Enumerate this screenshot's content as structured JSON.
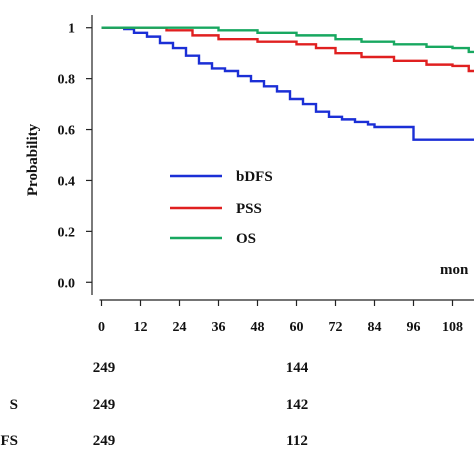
{
  "chart_data": {
    "type": "line",
    "title": "",
    "xlabel": "mon",
    "ylabel": "Probability",
    "xlim": [
      -2,
      118
    ],
    "ylim": [
      -0.05,
      1.05
    ],
    "xticks": [
      "0",
      "12",
      "24",
      "36",
      "48",
      "60",
      "72",
      "84",
      "96",
      "108"
    ],
    "xtick_values": [
      0,
      12,
      24,
      36,
      48,
      60,
      72,
      84,
      96,
      108
    ],
    "yticks": [
      "0.0",
      "0.2",
      "0.4",
      "0.6",
      "0.8",
      "1"
    ],
    "ytick_values": [
      0,
      0.2,
      0.4,
      0.6,
      0.8,
      1
    ],
    "grid": false,
    "legend": "center-left",
    "series": [
      {
        "name": "bDFS",
        "color": "#1b2fd6",
        "x": [
          0,
          7,
          10,
          14,
          18,
          22,
          26,
          30,
          34,
          38,
          42,
          46,
          50,
          54,
          58,
          62,
          66,
          70,
          74,
          78,
          82,
          84,
          96,
          118
        ],
        "y": [
          1,
          0.995,
          0.98,
          0.965,
          0.94,
          0.92,
          0.89,
          0.86,
          0.84,
          0.83,
          0.81,
          0.79,
          0.77,
          0.75,
          0.72,
          0.7,
          0.67,
          0.65,
          0.64,
          0.63,
          0.62,
          0.61,
          0.56,
          0.56
        ]
      },
      {
        "name": "PSS",
        "color": "#e02020",
        "x": [
          0,
          12,
          20,
          28,
          36,
          48,
          60,
          66,
          72,
          80,
          90,
          100,
          108,
          113,
          118
        ],
        "y": [
          1,
          1,
          0.99,
          0.97,
          0.955,
          0.945,
          0.935,
          0.92,
          0.9,
          0.885,
          0.87,
          0.855,
          0.85,
          0.83,
          0.83
        ]
      },
      {
        "name": "OS",
        "color": "#18a860",
        "x": [
          0,
          20,
          36,
          48,
          60,
          72,
          80,
          90,
          100,
          108,
          113,
          118
        ],
        "y": [
          1,
          1,
          0.99,
          0.98,
          0.97,
          0.955,
          0.945,
          0.935,
          0.925,
          0.92,
          0.905,
          0.905
        ]
      }
    ]
  },
  "risk_table": {
    "rows": [
      {
        "label": "",
        "values": [
          "249",
          "144"
        ]
      },
      {
        "label": "S",
        "values": [
          "249",
          "142"
        ]
      },
      {
        "label": "FS",
        "values": [
          "249",
          "112"
        ]
      }
    ]
  }
}
